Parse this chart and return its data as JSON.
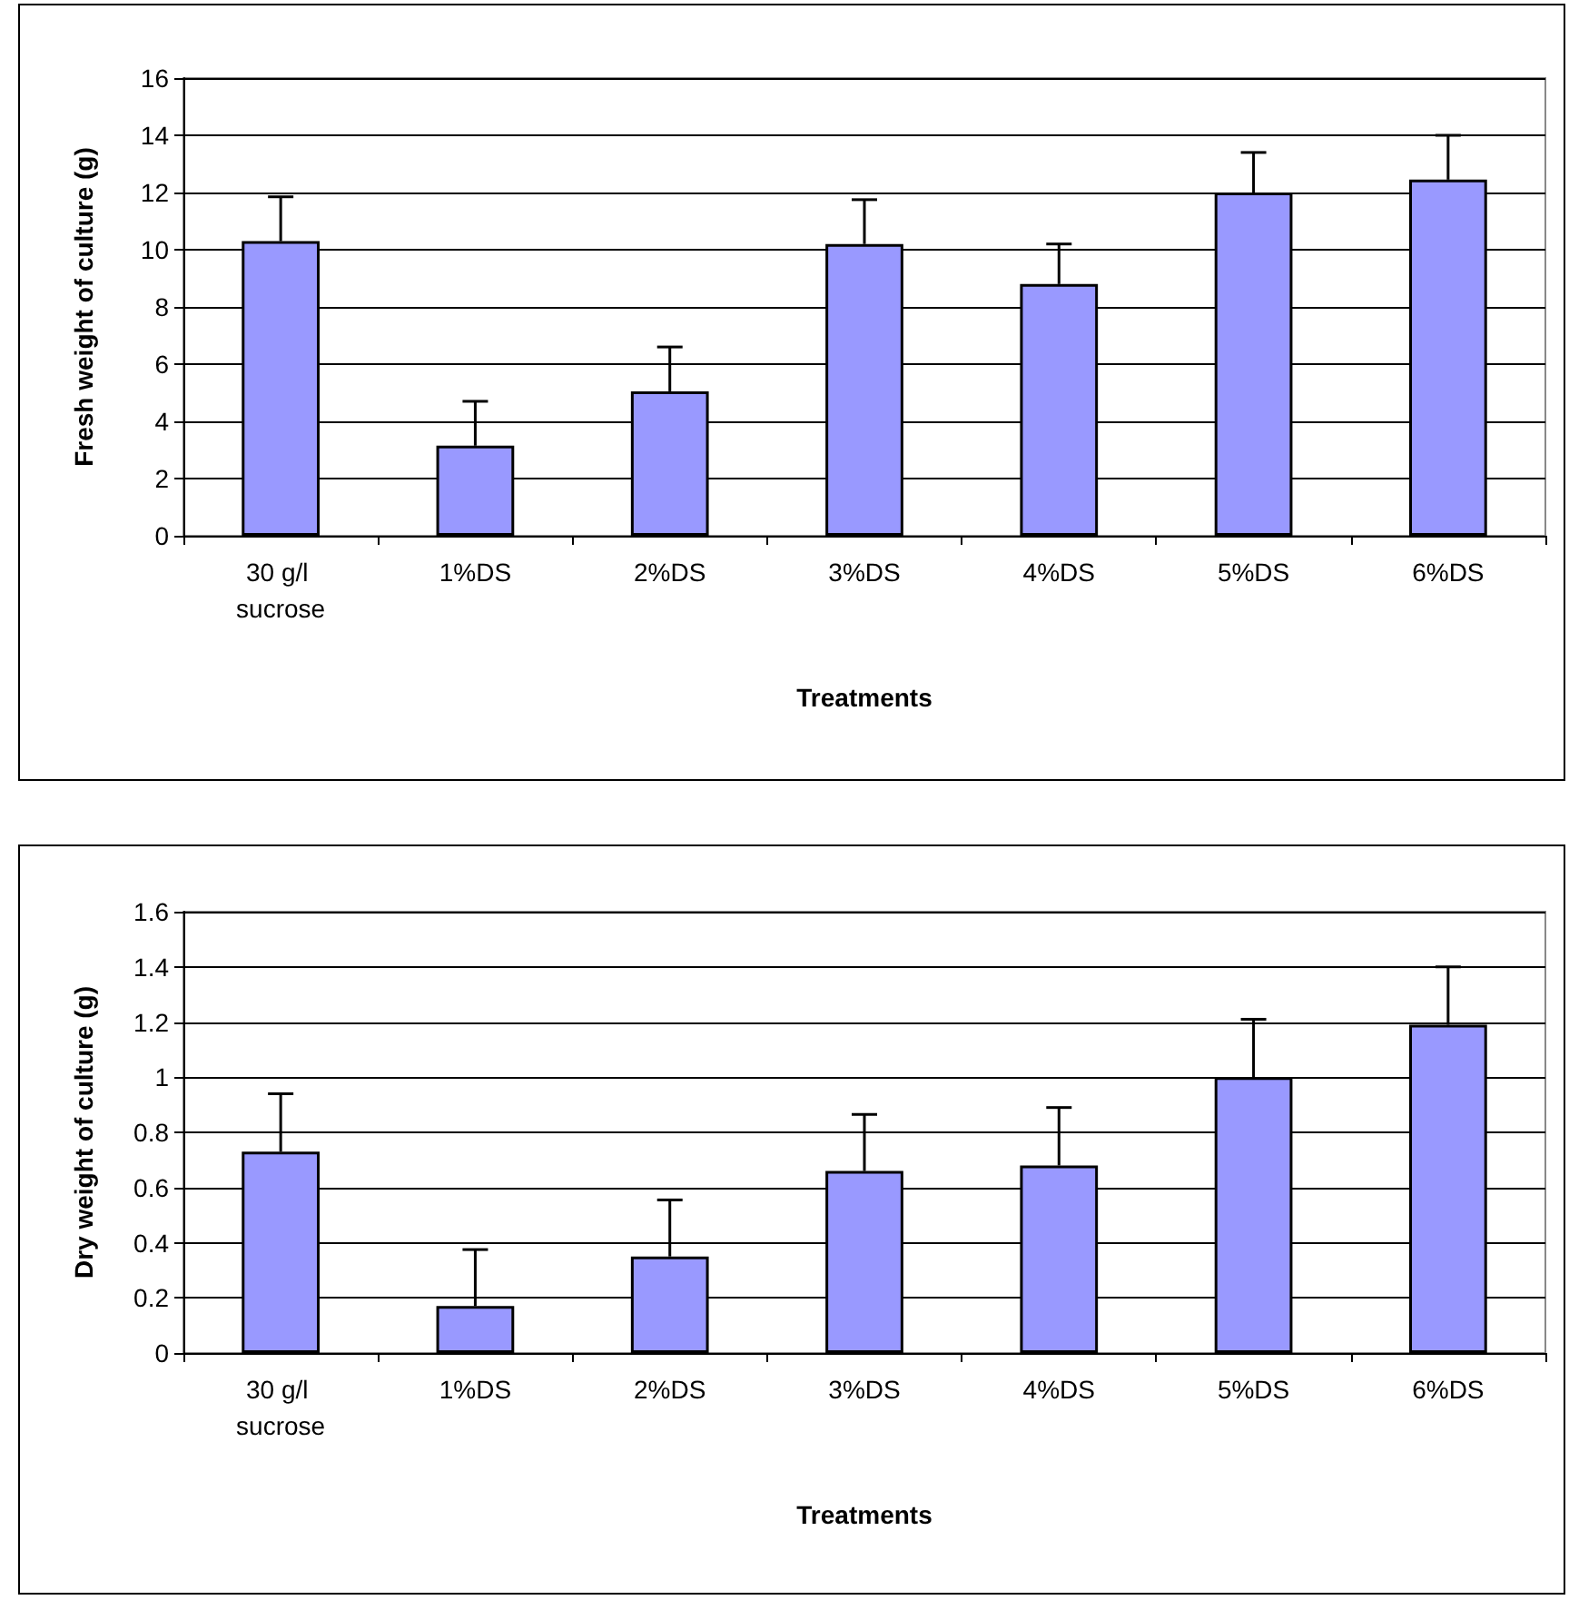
{
  "chart_data": [
    {
      "type": "bar",
      "xlabel": "Treatments",
      "ylabel": "Fresh weight of culture (g)",
      "categories": [
        "30 g/l sucrose",
        "1%DS",
        "2%DS",
        "3%DS",
        "4%DS",
        "5%DS",
        "6%DS"
      ],
      "values": [
        10.3,
        3.15,
        5.05,
        10.2,
        8.8,
        12.0,
        12.45
      ],
      "errors": [
        [
          10.3,
          11.85
        ],
        [
          3.15,
          4.7
        ],
        [
          5.05,
          6.6
        ],
        [
          10.2,
          11.75
        ],
        [
          8.8,
          10.2
        ],
        [
          12.0,
          13.4
        ],
        [
          12.45,
          14.0
        ]
      ],
      "color": "#9999ff",
      "ylim": [
        0,
        16
      ],
      "yticks": [
        0,
        2,
        4,
        6,
        8,
        10,
        12,
        14,
        16
      ],
      "grid": "y"
    },
    {
      "type": "bar",
      "xlabel": "Treatments",
      "ylabel": "Dry weight of culture (g)",
      "categories": [
        "30 g/l sucrose",
        "1%DS",
        "2%DS",
        "3%DS",
        "4%DS",
        "5%DS",
        "6%DS"
      ],
      "values": [
        0.73,
        0.17,
        0.35,
        0.66,
        0.68,
        1.0,
        1.19
      ],
      "errors": [
        [
          0.73,
          0.94
        ],
        [
          0.17,
          0.375
        ],
        [
          0.35,
          0.555
        ],
        [
          0.66,
          0.865
        ],
        [
          0.68,
          0.89
        ],
        [
          1.0,
          1.21
        ],
        [
          1.19,
          1.4
        ]
      ],
      "color": "#9999ff",
      "ylim": [
        0,
        1.6
      ],
      "yticks": [
        0,
        0.2,
        0.4,
        0.6,
        0.8,
        1,
        1.2,
        1.4,
        1.6
      ],
      "grid": "y"
    }
  ]
}
